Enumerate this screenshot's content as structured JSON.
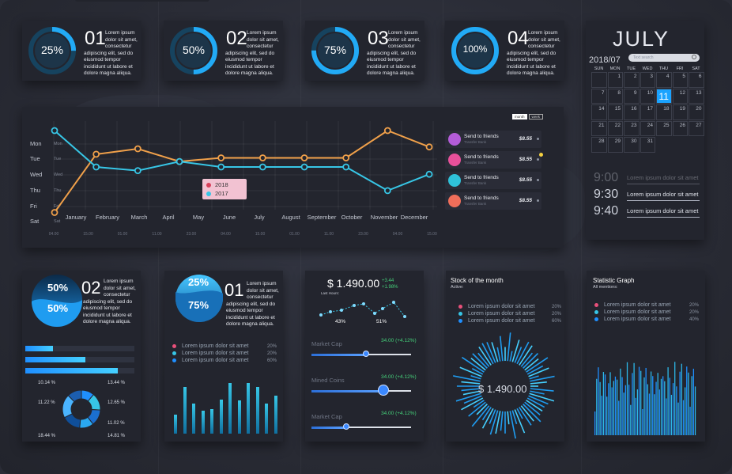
{
  "colors": {
    "cyan": "#37c6e6",
    "blue": "#1f8fff",
    "orange": "#f0a04a",
    "pink": "#e8607f",
    "panel": "#23252e",
    "accent_selected": "#1aa3ff"
  },
  "kpis": [
    {
      "percent": "25%",
      "number": "01",
      "text": [
        "Lorem ipsum",
        "dolor sit amet,",
        "consectetur",
        "adipiscing elit, sed do",
        "eiusmod tempor",
        "incididunt ut labore et",
        "dolore magna aliqua."
      ]
    },
    {
      "percent": "50%",
      "number": "02",
      "text": [
        "Lorem ipsum",
        "dolor sit amet,",
        "consectetur",
        "adipiscing elit, sed do",
        "eiusmod tempor",
        "incididunt ut labore et",
        "dolore magna aliqua."
      ]
    },
    {
      "percent": "75%",
      "number": "03",
      "text": [
        "Lorem ipsum",
        "dolor sit amet,",
        "consectetur",
        "adipiscing elit, sed do",
        "eiusmod tempor",
        "incididunt ut labore et",
        "dolore magna aliqua."
      ]
    },
    {
      "percent": "100%",
      "number": "04",
      "text": [
        "Lorem ipsum",
        "dolor sit amet,",
        "consectetur",
        "adipiscing elit, sed do",
        "eiusmod tempor",
        "incididunt ut labore et",
        "dolore magna aliqua."
      ]
    }
  ],
  "calendar": {
    "month": "JULY",
    "year_month": "2018/07",
    "search_placeholder": "Text search",
    "weekdays": [
      "SUN",
      "MON",
      "TUE",
      "WED",
      "THU",
      "FRI",
      "SAT"
    ],
    "weeks": [
      [
        "",
        "1",
        "2",
        "3",
        "4",
        "5",
        "6"
      ],
      [
        "7",
        "8",
        "9",
        "10",
        "11",
        "12",
        "13"
      ],
      [
        "14",
        "15",
        "16",
        "17",
        "18",
        "19",
        "20"
      ],
      [
        "21",
        "22",
        "23",
        "24",
        "25",
        "26",
        "27"
      ],
      [
        "28",
        "29",
        "30",
        "31",
        "",
        "",
        ""
      ]
    ],
    "selected_day": "11"
  },
  "schedule": [
    {
      "time": "9:00",
      "text": "Lorem ipsum dolor sit amet"
    },
    {
      "time": "9:30",
      "text": "Lorem ipsum dolor sit amet"
    },
    {
      "time": "9:40",
      "text": "Lorem ipsum dolor sit amet"
    }
  ],
  "line_chart": {
    "toggle": [
      "month",
      "week"
    ],
    "y_outer": [
      "Mon",
      "Tue",
      "Wed",
      "Thu",
      "Fri",
      "Sat"
    ],
    "y_inner": [
      "Mon",
      "Tue",
      "Wed",
      "Thu",
      "Fri",
      "Sat"
    ],
    "months": [
      "January",
      "February",
      "March",
      "April",
      "May",
      "June",
      "July",
      "August",
      "September",
      "October",
      "November",
      "December"
    ],
    "times": [
      "04.00",
      "15.00",
      "01.00",
      "11.00",
      "23.00",
      "04.00",
      "15.00",
      "01.00",
      "11.00",
      "23.00",
      "04.00",
      "15.00",
      "01.00",
      "11.00",
      "23.00"
    ]
  },
  "chart_data": {
    "type": "line",
    "categories": [
      "January",
      "February",
      "March",
      "May",
      "June",
      "July",
      "August",
      "October",
      "November",
      "December"
    ],
    "series": [
      {
        "name": "2018",
        "color": "#f0a04a",
        "values": [
          0.5,
          3.7,
          4.0,
          3.3,
          3.5,
          3.5,
          3.5,
          3.5,
          5.0,
          4.1
        ]
      },
      {
        "name": "2017",
        "color": "#37c6e6",
        "values": [
          5.0,
          3.0,
          2.8,
          3.3,
          3.0,
          3.0,
          3.0,
          3.0,
          1.7,
          2.6
        ]
      }
    ],
    "legend_position": "center"
  },
  "transfers": [
    {
      "title": "Send to friends",
      "subtitle": "Transfer Bank",
      "amount": "$8.55",
      "color": "#b45cd8"
    },
    {
      "title": "Send to friends",
      "subtitle": "Transfer Bank",
      "amount": "$8.55",
      "color": "#e8509a"
    },
    {
      "title": "Send to friends",
      "subtitle": "Transfer Bank",
      "amount": "$8.55",
      "color": "#2fc1d8"
    },
    {
      "title": "Send to friends",
      "subtitle": "Transfer Bank",
      "amount": "$8.55",
      "color": "#f06e5a"
    }
  ],
  "panel_a": {
    "top_pct": "50%",
    "bottom_pct": "50%",
    "number": "02",
    "text": [
      "Lorem ipsum",
      "dolor sit amet,",
      "consectetur",
      "adipiscing elit, sed do",
      "eiusmod tempor",
      "incididunt ut labore et",
      "dolore magna aliqua."
    ],
    "bars": [
      0.25,
      0.55,
      0.85
    ],
    "donut_labels": [
      "10.14 %",
      "13.44 %",
      "11.22 %",
      "12.65 %",
      "11.02 %",
      "18.44 %",
      "14.81 %"
    ]
  },
  "panel_b": {
    "top_pct": "25%",
    "bottom_pct": "75%",
    "number": "01",
    "text": [
      "Lorem ipsum",
      "dolor sit amet,",
      "consectetur",
      "adipiscing elit, sed do",
      "eiusmod tempor",
      "incididunt ut labore et",
      "dolore magna aliqua."
    ],
    "legend": [
      {
        "label": "Lorem ipsum dolor sit amet",
        "pct": "20%",
        "color": "#e8507a"
      },
      {
        "label": "Lorem ipsum dolor sit amet",
        "pct": "20%",
        "color": "#37c6e6"
      },
      {
        "label": "Lorem ipsum dolor sit amet",
        "pct": "60%",
        "color": "#1f8fff"
      }
    ],
    "bars": [
      0.35,
      0.85,
      0.55,
      0.42,
      0.45,
      0.62,
      0.92,
      0.6,
      0.92,
      0.85,
      0.55,
      0.68
    ]
  },
  "panel_c": {
    "price": "$ 1.490.00",
    "delta1": "+3.44",
    "delta2": "+1.98%",
    "last_hours": "Last Hours:",
    "left_pct": "43%",
    "right_pct": "51%",
    "sliders": [
      {
        "label": "Market Cap",
        "value": "34.00 (+4.12%)",
        "level": 0.55
      },
      {
        "label": "Mined Coins",
        "value": "34.00 (+4.12%)",
        "level": 0.72
      },
      {
        "label": "Market Cap",
        "value": "34.00 (+4.12%)",
        "level": 0.35
      }
    ]
  },
  "panel_d": {
    "title": "Stock of the month",
    "subtitle": "Active:",
    "center_value": "$ 1.490.00",
    "legend": [
      {
        "label": "Lorem ipsum dolor sit amet",
        "pct": "20%",
        "color": "#e8507a"
      },
      {
        "label": "Lorem ipsum dolor sit amet",
        "pct": "20%",
        "color": "#37c6e6"
      },
      {
        "label": "Lorem ipsum dolor sit amet",
        "pct": "60%",
        "color": "#1f8fff"
      }
    ]
  },
  "panel_e": {
    "title": "Statistic Graph",
    "subtitle": "All mentions:",
    "legend": [
      {
        "label": "Lorem ipsum dolor sit amet",
        "pct": "20%",
        "color": "#e8507a"
      },
      {
        "label": "Lorem ipsum dolor sit amet",
        "pct": "20%",
        "color": "#37c6e6"
      },
      {
        "label": "Lorem ipsum dolor sit amet",
        "pct": "40%",
        "color": "#1f8fff"
      }
    ]
  }
}
